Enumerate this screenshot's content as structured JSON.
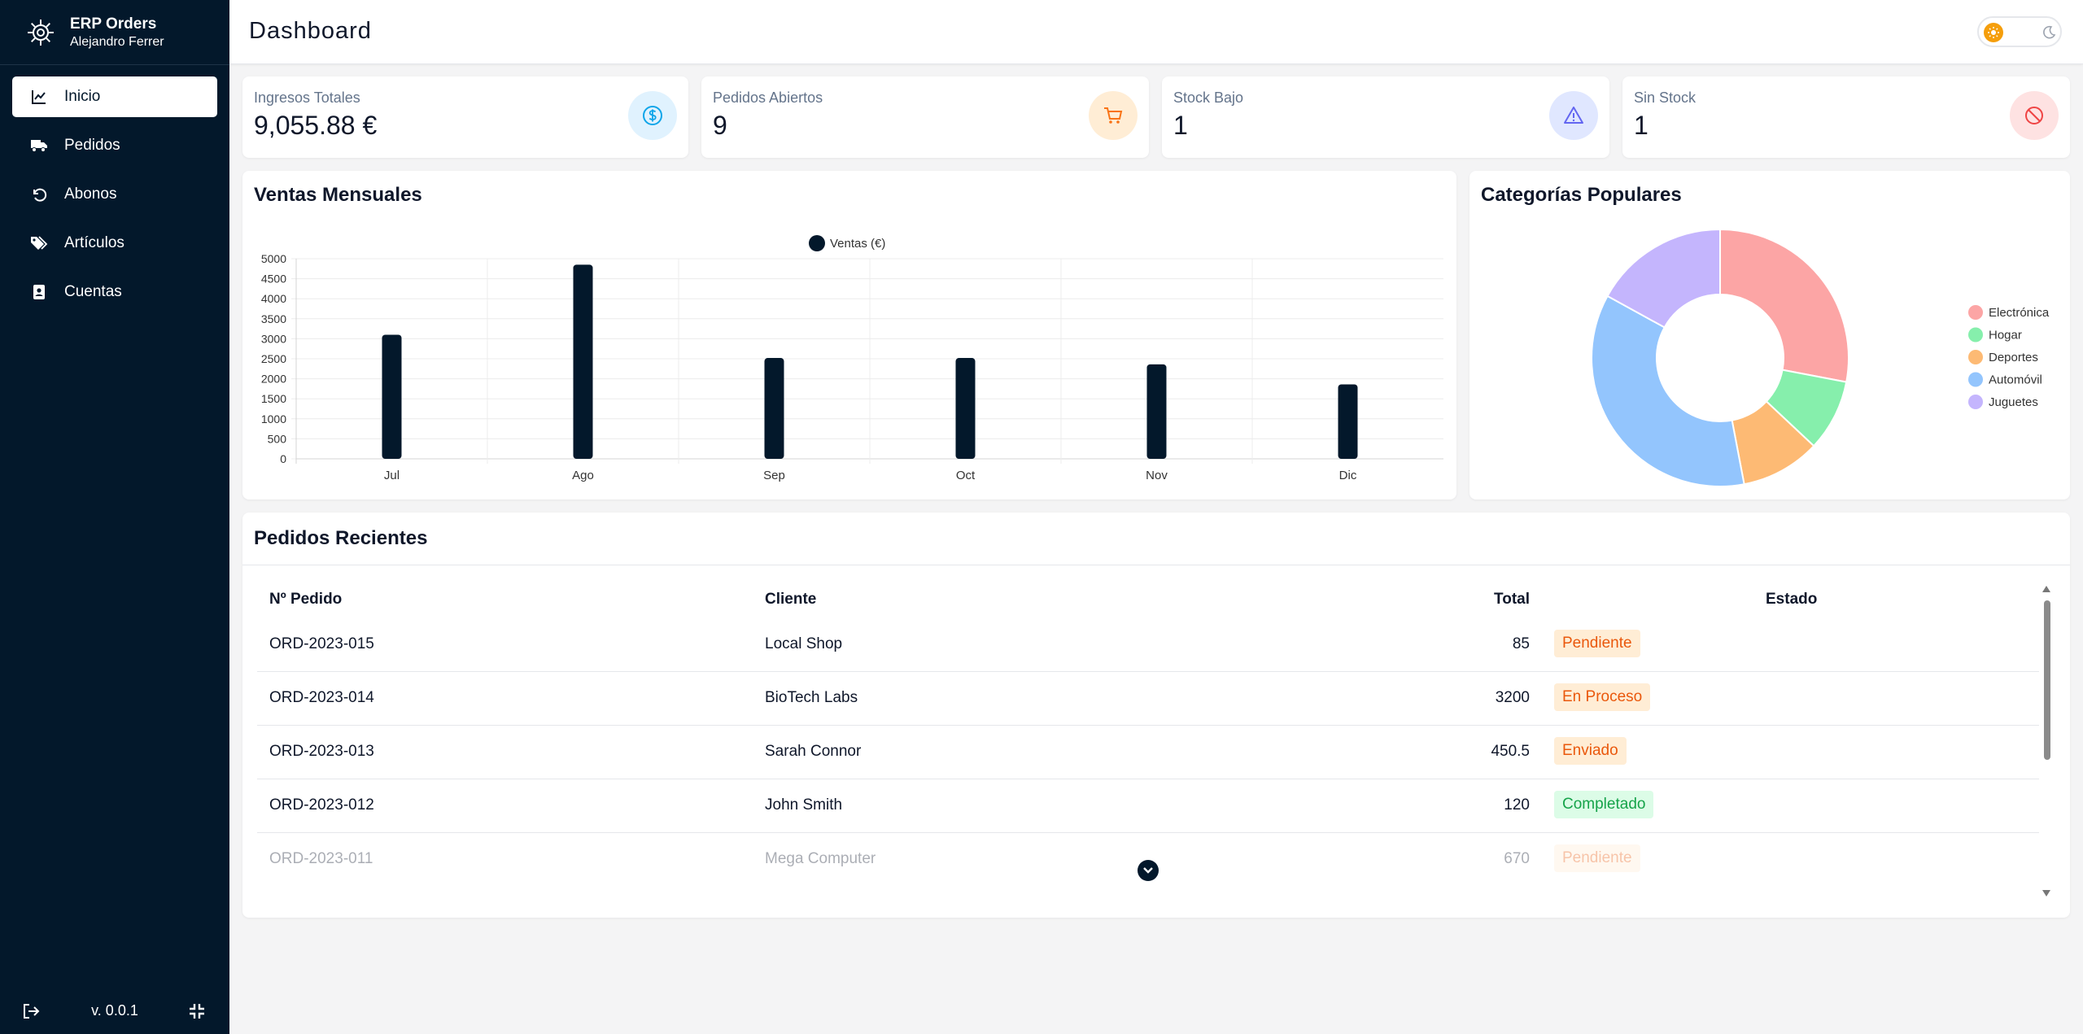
{
  "brand": {
    "title": "ERP Orders",
    "user": "Alejandro Ferrer"
  },
  "nav": [
    {
      "label": "Inicio",
      "icon": "chart-line-icon",
      "active": true
    },
    {
      "label": "Pedidos",
      "icon": "truck-icon"
    },
    {
      "label": "Abonos",
      "icon": "undo-icon"
    },
    {
      "label": "Artículos",
      "icon": "tags-icon"
    },
    {
      "label": "Cuentas",
      "icon": "address-book-icon"
    }
  ],
  "footer": {
    "version": "v. 0.0.1"
  },
  "header": {
    "title": "Dashboard",
    "theme": "light"
  },
  "stats": [
    {
      "label": "Ingresos Totales",
      "value": "9,055.88 €",
      "icon": "dollar-circle-icon",
      "color": "#0ea5e9",
      "bg": "#e0f2fe"
    },
    {
      "label": "Pedidos Abiertos",
      "value": "9",
      "icon": "cart-icon",
      "color": "#f97316",
      "bg": "#ffedd5"
    },
    {
      "label": "Stock Bajo",
      "value": "1",
      "icon": "warning-icon",
      "color": "#6366f1",
      "bg": "#e0e7ff"
    },
    {
      "label": "Sin Stock",
      "value": "1",
      "icon": "ban-icon",
      "color": "#ef4444",
      "bg": "#fee2e2"
    }
  ],
  "sales_card": {
    "title": "Ventas Mensuales"
  },
  "categories_card": {
    "title": "Categorías Populares"
  },
  "orders_card": {
    "title": "Pedidos Recientes"
  },
  "chart_data": [
    {
      "type": "bar",
      "title": "Ventas Mensuales",
      "categories": [
        "Jul",
        "Ago",
        "Sep",
        "Oct",
        "Nov",
        "Dic"
      ],
      "series": [
        {
          "name": "Ventas (€)",
          "values": [
            3100,
            4850,
            2520,
            2520,
            2360,
            1860
          ],
          "color": "#03182b"
        }
      ],
      "ylim": [
        0,
        5000
      ],
      "yticks": [
        0,
        500,
        1000,
        1500,
        2000,
        2500,
        3000,
        3500,
        4000,
        4500,
        5000
      ],
      "grid": true,
      "legend": "top-center"
    },
    {
      "type": "pie",
      "title": "Categorías Populares",
      "labels": [
        "Electrónica",
        "Hogar",
        "Deportes",
        "Automóvil",
        "Juguetes"
      ],
      "values": [
        28,
        9,
        10,
        36,
        17
      ],
      "colors": [
        "#fca5a5",
        "#86efac",
        "#fdba74",
        "#93c5fd",
        "#c4b5fd"
      ],
      "legend": "right"
    }
  ],
  "orders": {
    "headers": {
      "id": "Nº Pedido",
      "client": "Cliente",
      "total": "Total",
      "status": "Estado"
    },
    "rows": [
      {
        "id": "ORD-2023-015",
        "client": "Local Shop",
        "total": "85",
        "status": "Pendiente",
        "tone": "orange"
      },
      {
        "id": "ORD-2023-014",
        "client": "BioTech Labs",
        "total": "3200",
        "status": "En Proceso",
        "tone": "orange"
      },
      {
        "id": "ORD-2023-013",
        "client": "Sarah Connor",
        "total": "450.5",
        "status": "Enviado",
        "tone": "orange"
      },
      {
        "id": "ORD-2023-012",
        "client": "John Smith",
        "total": "120",
        "status": "Completado",
        "tone": "green"
      },
      {
        "id": "ORD-2023-011",
        "client": "Mega Computer",
        "total": "670",
        "status": "Pendiente",
        "tone": "orange"
      }
    ]
  }
}
